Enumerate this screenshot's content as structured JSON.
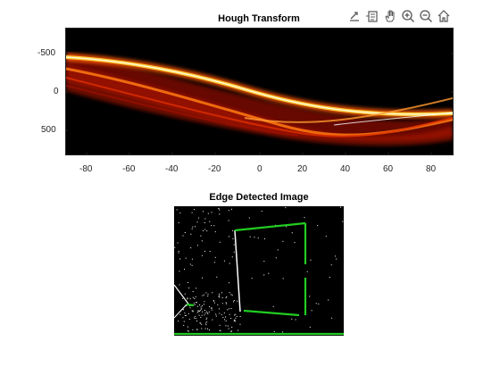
{
  "toolbar": {
    "icons": [
      "export-icon",
      "data-tips-icon",
      "pan-icon",
      "zoom-in-icon",
      "zoom-out-icon",
      "home-icon"
    ]
  },
  "hough": {
    "title": "Hough Transform",
    "x_ticks": [
      "-80",
      "-60",
      "-40",
      "-20",
      "0",
      "20",
      "40",
      "60",
      "80"
    ],
    "y_ticks": [
      "-500",
      "0",
      "500"
    ],
    "colormap": "hot",
    "background": "#000000"
  },
  "edge": {
    "title": "Edge Detected Image",
    "line_color": "#22cc22",
    "background": "#000000"
  }
}
